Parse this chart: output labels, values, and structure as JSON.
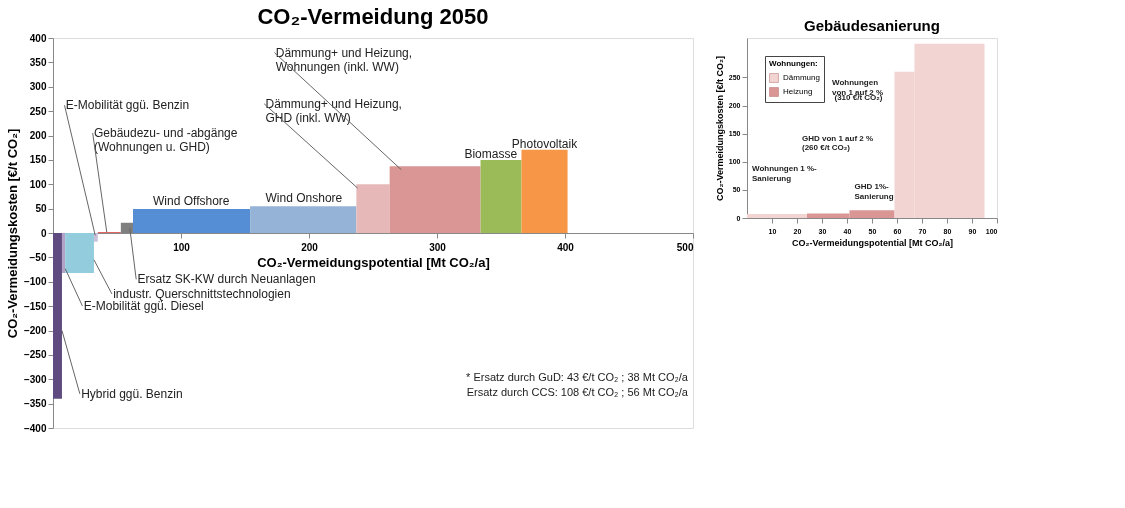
{
  "chart_data": [
    {
      "type": "area",
      "title": "CO₂-Vermeidung 2050",
      "xlabel": "CO₂-Vermeidungspotential [Mt CO₂/a]",
      "ylabel": "CO₂-Vermeidungskosten [€/t CO₂]",
      "xlim": [
        0,
        500
      ],
      "xticks": [
        100,
        200,
        300,
        400,
        500
      ],
      "ylim": [
        -400,
        400
      ],
      "yticks": [
        -400,
        -350,
        -300,
        -250,
        -200,
        -150,
        -100,
        -50,
        0,
        50,
        100,
        150,
        200,
        250,
        300,
        350,
        400
      ],
      "grid": false,
      "legend": false,
      "series": [
        {
          "name": "Hybrid ggü. Benzin",
          "color": "#5f4b80",
          "x": [
            0,
            7
          ],
          "values": [
            -340,
            -340
          ]
        },
        {
          "name": "E-Mobilität ggü. Diesel",
          "color": "#b3a2c7",
          "x": [
            7,
            9.5
          ],
          "values": [
            -82,
            -82
          ]
        },
        {
          "name": "industr. Querschnittstechnologien",
          "color": "#93cddd",
          "x": [
            9.5,
            32
          ],
          "values": [
            -82,
            -82
          ]
        },
        {
          "name": "E-Mobilität ggü. Benzin",
          "color": "#ccc1da",
          "x": [
            32,
            35
          ],
          "values": [
            -18,
            -18
          ]
        },
        {
          "name": "Gebäudezu- und -abgänge\n(Wohnungen u. GHD)",
          "color": "#e06666",
          "x": [
            35,
            53
          ],
          "values": [
            2,
            2
          ]
        },
        {
          "name": "Ersatz SK-KW durch Neuanlagen",
          "color": "#7f7f7f",
          "x": [
            53,
            62.5
          ],
          "values": [
            21,
            21
          ]
        },
        {
          "name": "Wind Offshore",
          "color": "#558ed5",
          "x": [
            62.5,
            154
          ],
          "values": [
            49,
            49
          ]
        },
        {
          "name": "Wind Onshore",
          "color": "#95b3d7",
          "x": [
            154,
            237
          ],
          "values": [
            55,
            55
          ]
        },
        {
          "name": "Dämmung+ und Heizung,\nGHD (inkl. WW)",
          "color": "#e6b9b8",
          "x": [
            237,
            263
          ],
          "values": [
            100,
            100
          ]
        },
        {
          "name": "Dämmung+ und Heizung,\nWohnungen (inkl. WW)",
          "color": "#d99694",
          "x": [
            263,
            334
          ],
          "values": [
            137,
            137
          ]
        },
        {
          "name": "Biomasse",
          "color": "#9bbb59",
          "x": [
            334,
            366
          ],
          "values": [
            150,
            150
          ]
        },
        {
          "name": "Photovoltaik",
          "color": "#f79646",
          "x": [
            366,
            402
          ],
          "values": [
            171,
            171
          ]
        }
      ],
      "annotations": [
        "* Ersatz durch GuD:   43 €/t CO₂ ; 38 Mt CO₂/a",
        "Ersatz durch CCS: 108 €/t CO₂ ; 56 Mt CO₂/a"
      ]
    },
    {
      "type": "area",
      "title": "Gebäudesanierung",
      "xlabel": "CO₂-Vermeidungspotential [Mt CO₂/a]",
      "ylabel": "CO₂-Vermeidungskosten [€/t CO₂]",
      "xlim": [
        0,
        100
      ],
      "xticks": [
        10,
        20,
        30,
        40,
        50,
        60,
        70,
        80,
        90,
        100
      ],
      "ylim": [
        0,
        320
      ],
      "yticks": [
        0,
        50,
        100,
        150,
        200,
        250
      ],
      "grid": false,
      "legend": "top left",
      "legend_title": "Wohnungen:",
      "series": [
        {
          "name": "Dämmung",
          "color": "#f2d4d3",
          "x": [
            0,
            24
          ],
          "values": [
            7,
            7
          ]
        },
        {
          "name": "Heizung",
          "color": "#d99694",
          "x": [
            24,
            41
          ],
          "values": [
            8,
            8
          ]
        },
        {
          "color": "#d99694",
          "x": [
            41,
            59
          ],
          "values": [
            14,
            14
          ]
        },
        {
          "color": "#f2d4d3",
          "x": [
            59,
            67
          ],
          "values": [
            260,
            260
          ]
        },
        {
          "color": "#f2d4d3",
          "x": [
            67,
            95
          ],
          "values": [
            310,
            310
          ]
        }
      ],
      "annotations": [
        "Wohnungen 1 %-\nSanierung",
        "GHD 1%-\nSanierung",
        "GHD von 1 auf 2 %",
        "(260 €/t CO₂)",
        "Wohnungen\nvon 1 auf 2 %",
        "(310 €/t CO₂)"
      ]
    }
  ]
}
